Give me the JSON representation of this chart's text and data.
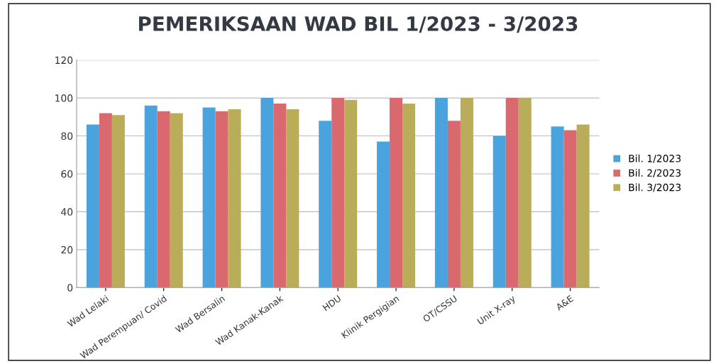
{
  "chart_data": {
    "type": "bar",
    "title": "PEMERIKSAAN WAD BIL 1/2023 - 3/2023",
    "categories": [
      "Wad Lelaki",
      "Wad Perempuan/ Covid",
      "Wad Bersalin",
      "Wad Kanak-Kanak",
      "HDU",
      "Klinik Pergigian",
      "OT/CSSU",
      "Unit X-ray",
      "A&E"
    ],
    "series": [
      {
        "name": "Bil. 1/2023",
        "color": "#4aa3dc",
        "values": [
          86,
          96,
          95,
          100,
          88,
          77,
          100,
          80,
          85
        ]
      },
      {
        "name": "Bil. 2/2023",
        "color": "#d9696f",
        "values": [
          92,
          93,
          93,
          97,
          100,
          100,
          88,
          100,
          83
        ]
      },
      {
        "name": "Bil. 3/2023",
        "color": "#b9ad5a",
        "values": [
          91,
          92,
          94,
          94,
          99,
          97,
          100,
          100,
          86
        ]
      }
    ],
    "ylim": [
      0,
      120
    ],
    "yticks": [
      0,
      20,
      40,
      60,
      80,
      100,
      120
    ],
    "grid": "y",
    "legend": "right"
  }
}
